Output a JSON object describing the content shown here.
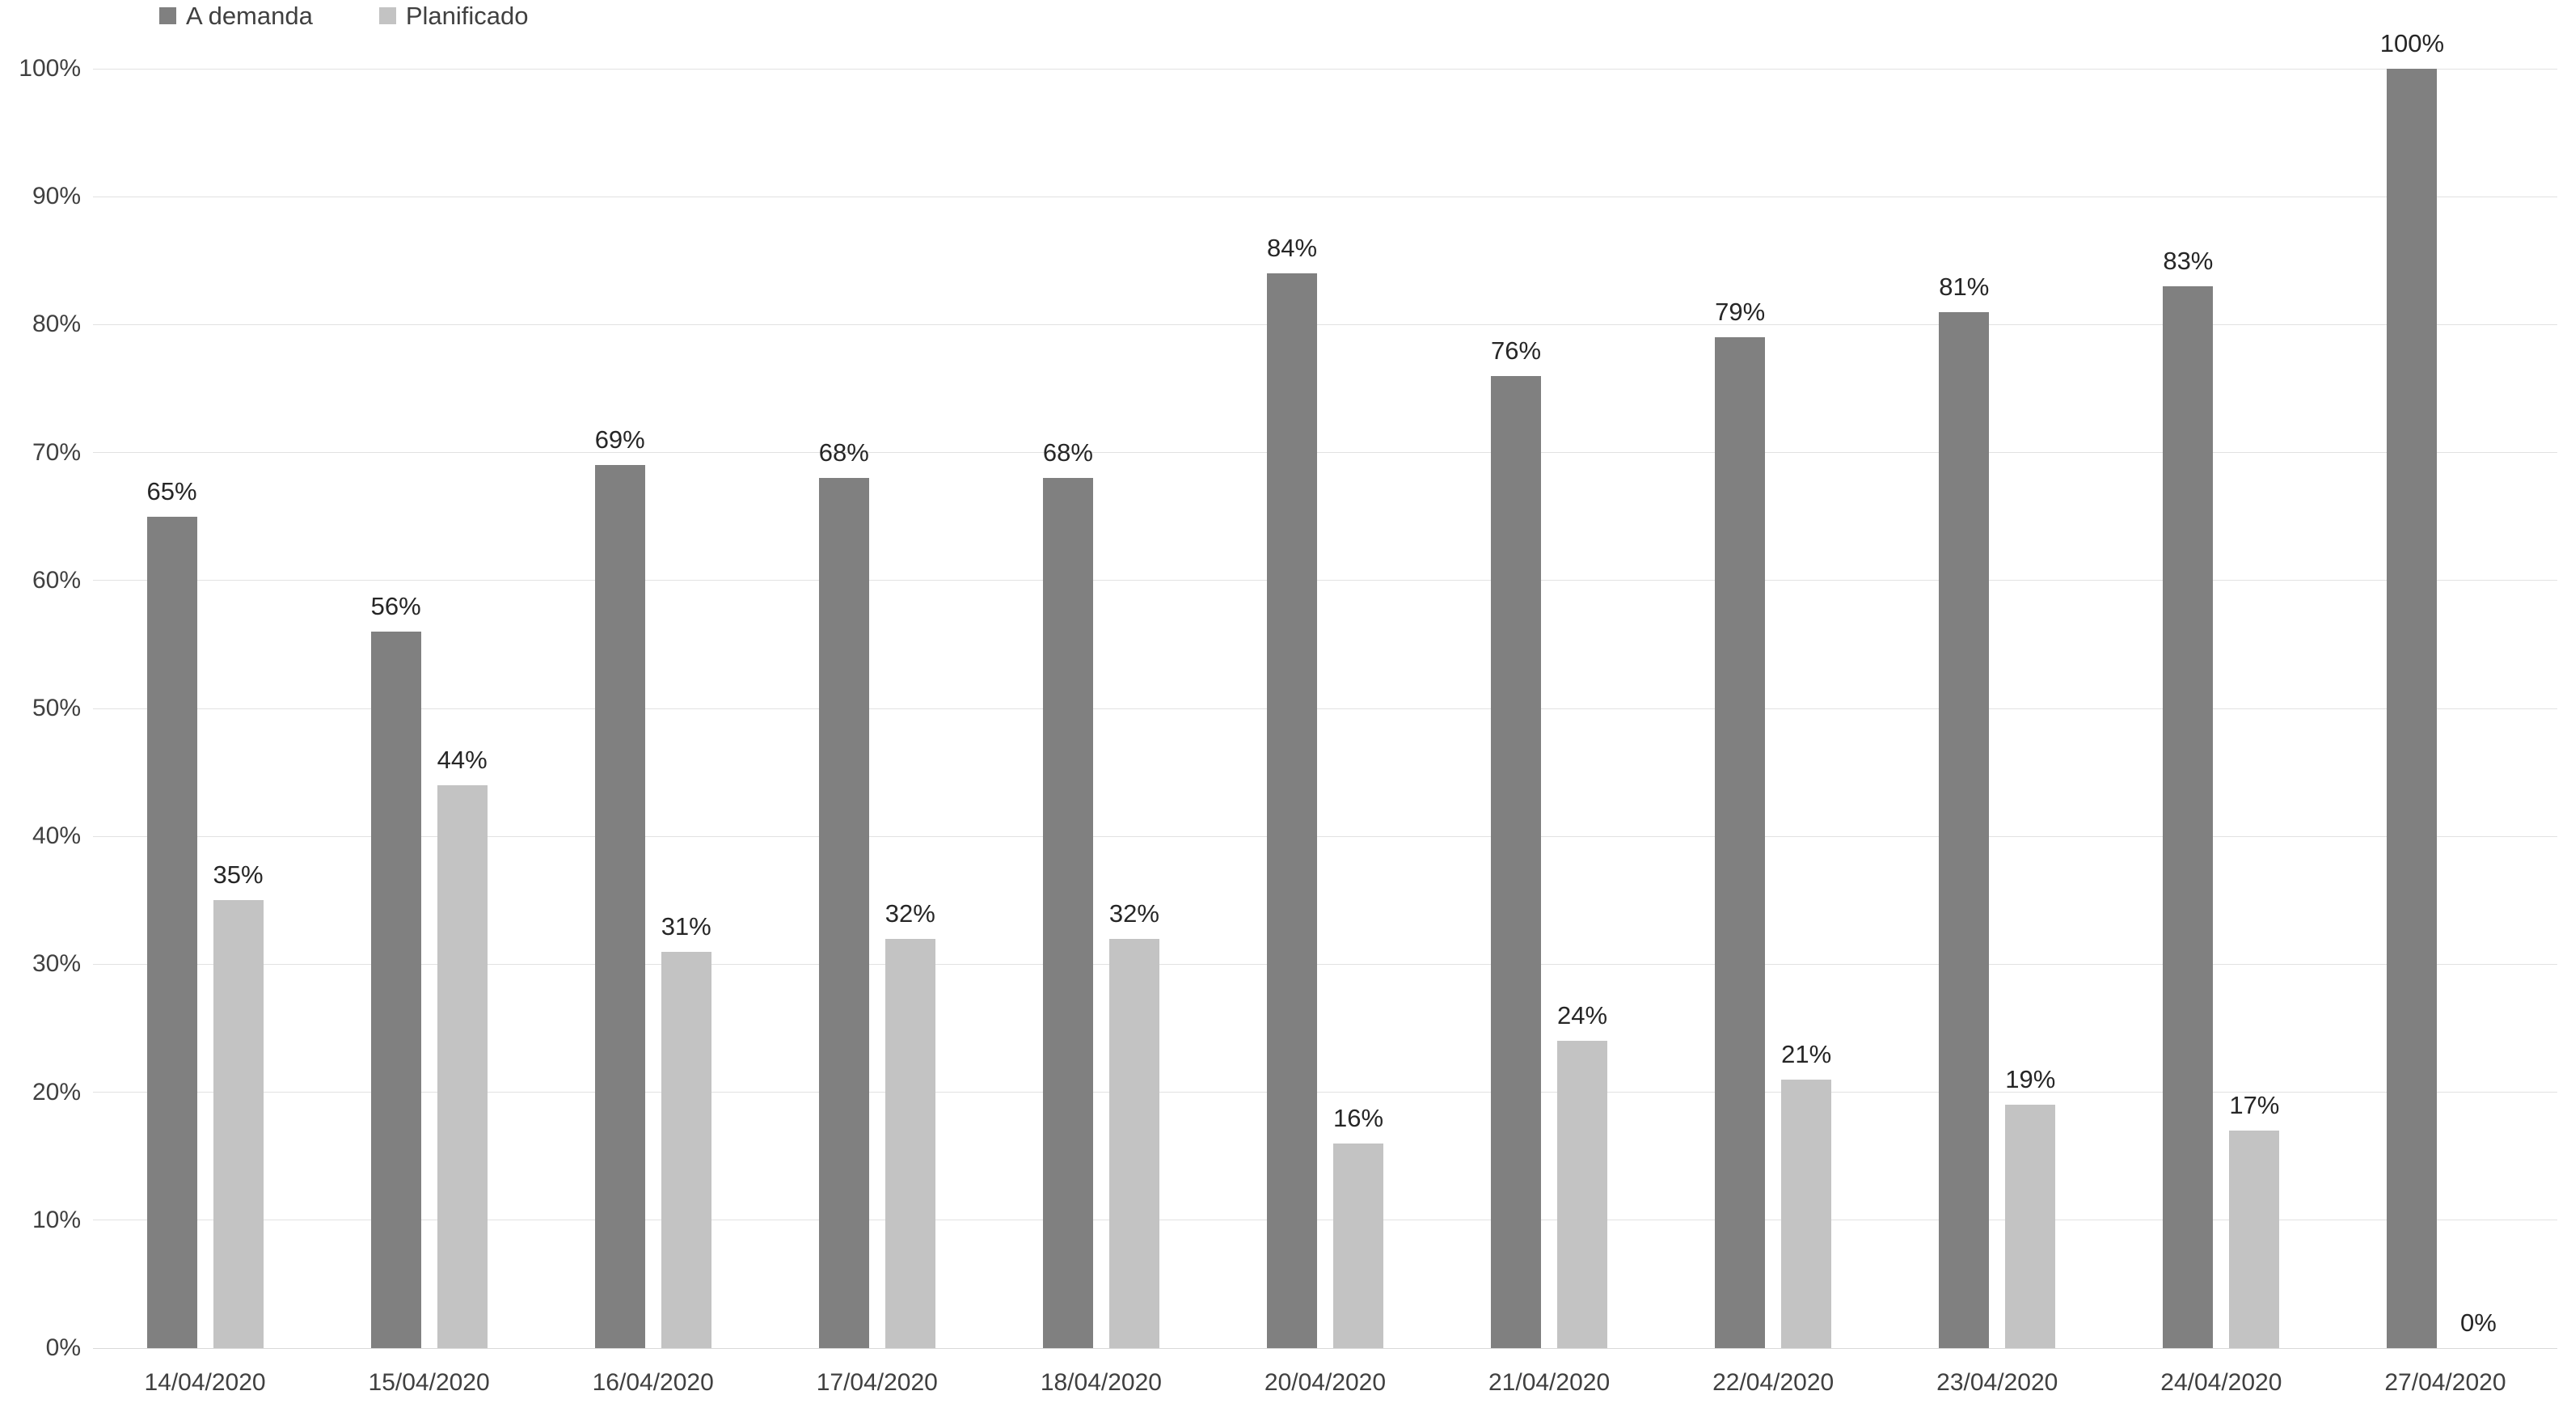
{
  "chart_data": {
    "type": "bar",
    "title": "",
    "categories": [
      "14/04/2020",
      "15/04/2020",
      "16/04/2020",
      "17/04/2020",
      "18/04/2020",
      "20/04/2020",
      "21/04/2020",
      "22/04/2020",
      "23/04/2020",
      "24/04/2020",
      "27/04/2020"
    ],
    "series": [
      {
        "name": "A demanda",
        "slug": "a-demanda",
        "color": "#808080",
        "values": [
          65,
          56,
          69,
          68,
          68,
          84,
          76,
          79,
          81,
          83,
          100
        ]
      },
      {
        "name": "Planificado",
        "slug": "planificado",
        "color": "#c3c3c3",
        "values": [
          35,
          44,
          31,
          32,
          32,
          16,
          24,
          21,
          19,
          17,
          0
        ]
      }
    ],
    "y_ticks": [
      "0%",
      "10%",
      "20%",
      "30%",
      "40%",
      "50%",
      "60%",
      "70%",
      "80%",
      "90%",
      "100%"
    ],
    "ylim": [
      0,
      100
    ],
    "value_suffix": "%",
    "data_labels": "outside end, integer percent",
    "grid": "horizontal lines every 10%",
    "legend_position": "top-left",
    "xlabel": "",
    "ylabel": ""
  },
  "colors": {
    "series_a_demanda": "#808080",
    "series_planificado": "#c3c3c3",
    "gridline": "#e2e2e2",
    "baseline": "#d9d9d9",
    "axis_text": "#404040",
    "data_label_text": "#262626",
    "background": "#ffffff"
  }
}
